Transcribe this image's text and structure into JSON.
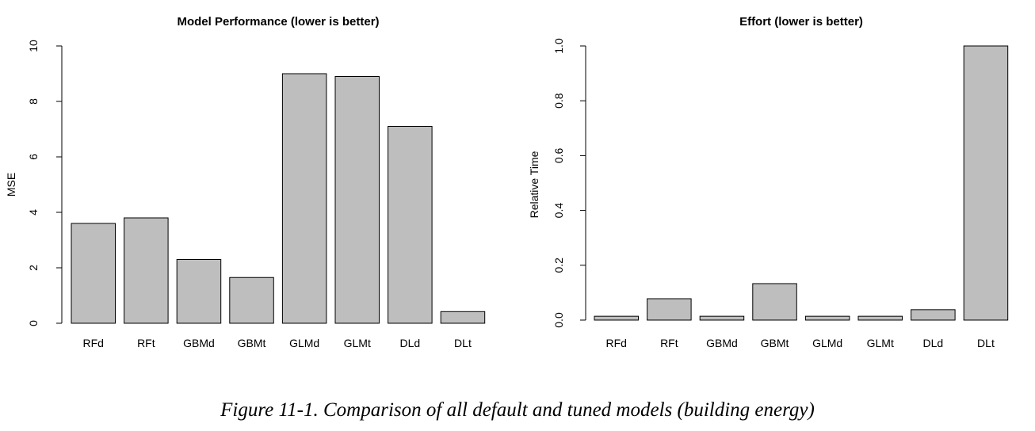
{
  "figure": {
    "caption": "Figure 11-1. Comparison of all default and tuned models (building energy)"
  },
  "chart_data": [
    {
      "type": "bar",
      "title": "Model Performance (lower is better)",
      "xlabel": "",
      "ylabel": "MSE",
      "categories": [
        "RFd",
        "RFt",
        "GBMd",
        "GBMt",
        "GLMd",
        "GLMt",
        "DLd",
        "DLt"
      ],
      "values": [
        3.6,
        3.8,
        2.3,
        1.65,
        9.0,
        8.9,
        7.1,
        0.42
      ],
      "ylim": [
        0,
        10
      ],
      "yticks": [
        "0",
        "2",
        "4",
        "6",
        "8",
        "10"
      ],
      "bar_color": "#bebebe",
      "grid": false
    },
    {
      "type": "bar",
      "title": "Effort (lower is better)",
      "xlabel": "",
      "ylabel": "Relative Time",
      "categories": [
        "RFd",
        "RFt",
        "GBMd",
        "GBMt",
        "GLMd",
        "GLMt",
        "DLd",
        "DLt"
      ],
      "values": [
        0.014,
        0.078,
        0.014,
        0.133,
        0.014,
        0.014,
        0.038,
        1.0
      ],
      "ylim": [
        0,
        1
      ],
      "yticks": [
        "0.0",
        "0.2",
        "0.4",
        "0.6",
        "0.8",
        "1.0"
      ],
      "bar_color": "#bebebe",
      "grid": false
    }
  ]
}
